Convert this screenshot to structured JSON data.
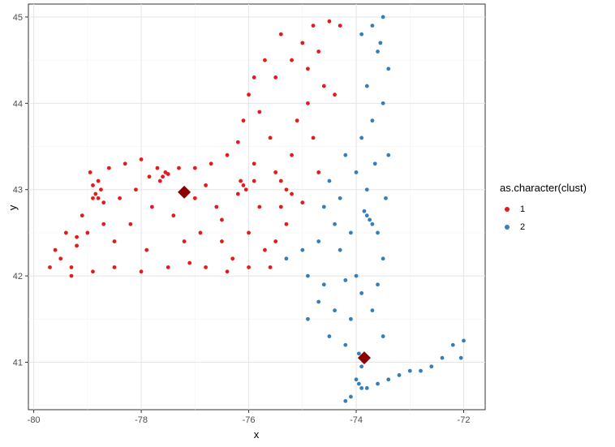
{
  "chart_data": {
    "type": "scatter",
    "title": "",
    "xlabel": "x",
    "ylabel": "y",
    "xlim": [
      -80.1,
      -71.6
    ],
    "ylim": [
      40.45,
      45.15
    ],
    "x_ticks": [
      "-80",
      "-78",
      "-76",
      "-74",
      "-72"
    ],
    "y_ticks": [
      "41",
      "42",
      "43",
      "44",
      "45"
    ],
    "x_tick_values": [
      -80,
      -78,
      -76,
      -74,
      -72
    ],
    "y_tick_values": [
      41,
      42,
      43,
      44,
      45
    ],
    "grid": true,
    "legend": {
      "title": "as.character(clust)",
      "position": "right"
    },
    "series": [
      {
        "name": "1",
        "color": "#E41A1C",
        "points": [
          [
            -79.7,
            42.1
          ],
          [
            -79.5,
            42.2
          ],
          [
            -79.3,
            42.1
          ],
          [
            -79.6,
            42.3
          ],
          [
            -79.2,
            42.35
          ],
          [
            -79.4,
            42.5
          ],
          [
            -79.0,
            42.5
          ],
          [
            -79.1,
            42.7
          ],
          [
            -78.9,
            42.9
          ],
          [
            -78.85,
            42.95
          ],
          [
            -78.8,
            42.9
          ],
          [
            -78.75,
            43.0
          ],
          [
            -78.9,
            43.05
          ],
          [
            -78.7,
            42.85
          ],
          [
            -78.8,
            43.1
          ],
          [
            -78.95,
            43.2
          ],
          [
            -78.6,
            43.25
          ],
          [
            -78.3,
            43.3
          ],
          [
            -78.0,
            43.35
          ],
          [
            -77.7,
            43.25
          ],
          [
            -77.6,
            43.15
          ],
          [
            -77.55,
            43.2
          ],
          [
            -77.65,
            43.1
          ],
          [
            -77.5,
            43.18
          ],
          [
            -77.3,
            43.25
          ],
          [
            -77.0,
            43.25
          ],
          [
            -76.7,
            43.3
          ],
          [
            -76.4,
            43.4
          ],
          [
            -76.2,
            43.55
          ],
          [
            -76.1,
            43.05
          ],
          [
            -76.15,
            43.1
          ],
          [
            -76.05,
            43.0
          ],
          [
            -76.2,
            42.95
          ],
          [
            -75.9,
            43.1
          ],
          [
            -75.5,
            43.2
          ],
          [
            -75.4,
            43.1
          ],
          [
            -75.3,
            43.0
          ],
          [
            -75.2,
            42.95
          ],
          [
            -75.3,
            42.6
          ],
          [
            -75.5,
            42.4
          ],
          [
            -75.6,
            42.1
          ],
          [
            -76.0,
            42.1
          ],
          [
            -76.4,
            42.05
          ],
          [
            -76.8,
            42.1
          ],
          [
            -77.1,
            42.15
          ],
          [
            -77.5,
            42.1
          ],
          [
            -78.0,
            42.05
          ],
          [
            -78.5,
            42.1
          ],
          [
            -78.9,
            42.05
          ],
          [
            -79.3,
            42.0
          ],
          [
            -78.2,
            42.6
          ],
          [
            -77.8,
            42.8
          ],
          [
            -77.4,
            42.7
          ],
          [
            -77.0,
            42.9
          ],
          [
            -76.6,
            42.8
          ],
          [
            -76.9,
            42.5
          ],
          [
            -76.5,
            42.4
          ],
          [
            -76.0,
            42.5
          ],
          [
            -75.8,
            42.8
          ],
          [
            -78.5,
            42.4
          ],
          [
            -77.9,
            42.3
          ],
          [
            -77.2,
            42.4
          ],
          [
            -76.3,
            42.2
          ],
          [
            -75.9,
            43.3
          ],
          [
            -75.6,
            43.6
          ],
          [
            -75.8,
            43.9
          ],
          [
            -76.0,
            44.1
          ],
          [
            -75.5,
            44.3
          ],
          [
            -75.2,
            44.5
          ],
          [
            -75.0,
            44.7
          ],
          [
            -74.8,
            44.9
          ],
          [
            -74.5,
            44.95
          ],
          [
            -74.3,
            44.9
          ],
          [
            -75.4,
            44.8
          ],
          [
            -75.7,
            44.5
          ],
          [
            -74.9,
            44.4
          ],
          [
            -74.6,
            44.2
          ],
          [
            -74.4,
            44.1
          ],
          [
            -74.9,
            44.0
          ],
          [
            -75.1,
            43.8
          ],
          [
            -74.8,
            43.6
          ],
          [
            -75.2,
            43.4
          ],
          [
            -74.7,
            43.2
          ],
          [
            -75.0,
            42.85
          ],
          [
            -79.2,
            42.45
          ],
          [
            -78.7,
            42.6
          ],
          [
            -78.4,
            42.9
          ],
          [
            -78.1,
            43.0
          ],
          [
            -77.85,
            43.15
          ],
          [
            -76.8,
            43.05
          ],
          [
            -76.5,
            42.65
          ],
          [
            -75.7,
            42.3
          ],
          [
            -75.4,
            42.8
          ],
          [
            -74.7,
            44.6
          ],
          [
            -75.9,
            44.3
          ],
          [
            -76.1,
            43.8
          ]
        ]
      },
      {
        "name": "2",
        "color": "#377EB8",
        "points": [
          [
            -73.5,
            45.0
          ],
          [
            -73.7,
            44.9
          ],
          [
            -73.9,
            44.8
          ],
          [
            -73.6,
            44.6
          ],
          [
            -73.4,
            44.4
          ],
          [
            -73.8,
            44.2
          ],
          [
            -73.5,
            44.0
          ],
          [
            -73.7,
            43.8
          ],
          [
            -73.9,
            43.6
          ],
          [
            -74.2,
            43.4
          ],
          [
            -74.0,
            43.2
          ],
          [
            -73.8,
            43.0
          ],
          [
            -74.3,
            42.9
          ],
          [
            -74.5,
            43.1
          ],
          [
            -73.8,
            42.7
          ],
          [
            -73.75,
            42.65
          ],
          [
            -73.7,
            42.6
          ],
          [
            -73.85,
            42.75
          ],
          [
            -73.6,
            42.5
          ],
          [
            -74.1,
            42.5
          ],
          [
            -74.4,
            42.6
          ],
          [
            -74.7,
            42.4
          ],
          [
            -75.0,
            42.3
          ],
          [
            -75.3,
            42.2
          ],
          [
            -74.9,
            42.0
          ],
          [
            -74.6,
            41.9
          ],
          [
            -74.2,
            41.95
          ],
          [
            -73.9,
            41.8
          ],
          [
            -73.7,
            41.6
          ],
          [
            -74.1,
            41.5
          ],
          [
            -74.4,
            41.6
          ],
          [
            -74.7,
            41.7
          ],
          [
            -74.9,
            41.5
          ],
          [
            -74.5,
            41.3
          ],
          [
            -74.2,
            41.2
          ],
          [
            -73.95,
            41.1
          ],
          [
            -73.8,
            41.05
          ],
          [
            -73.9,
            40.95
          ],
          [
            -74.0,
            40.8
          ],
          [
            -73.95,
            40.75
          ],
          [
            -73.9,
            40.7
          ],
          [
            -74.1,
            40.6
          ],
          [
            -74.2,
            40.55
          ],
          [
            -73.8,
            40.7
          ],
          [
            -73.6,
            40.75
          ],
          [
            -73.4,
            40.8
          ],
          [
            -73.2,
            40.85
          ],
          [
            -73.0,
            40.9
          ],
          [
            -72.8,
            40.9
          ],
          [
            -72.6,
            40.95
          ],
          [
            -72.4,
            41.05
          ],
          [
            -72.2,
            41.2
          ],
          [
            -72.0,
            41.25
          ],
          [
            -72.05,
            41.05
          ],
          [
            -73.5,
            41.3
          ],
          [
            -73.6,
            41.9
          ],
          [
            -73.5,
            42.2
          ],
          [
            -73.4,
            43.4
          ],
          [
            -73.45,
            42.9
          ],
          [
            -74.6,
            42.8
          ],
          [
            -74.0,
            42.0
          ],
          [
            -74.3,
            42.3
          ],
          [
            -73.65,
            43.3
          ],
          [
            -73.55,
            44.7
          ]
        ]
      }
    ],
    "centroids": [
      {
        "cluster": "1",
        "x": -77.2,
        "y": 42.97,
        "color": "#8B0000"
      },
      {
        "cluster": "2",
        "x": -73.85,
        "y": 41.05,
        "color": "#8B0000"
      }
    ]
  }
}
